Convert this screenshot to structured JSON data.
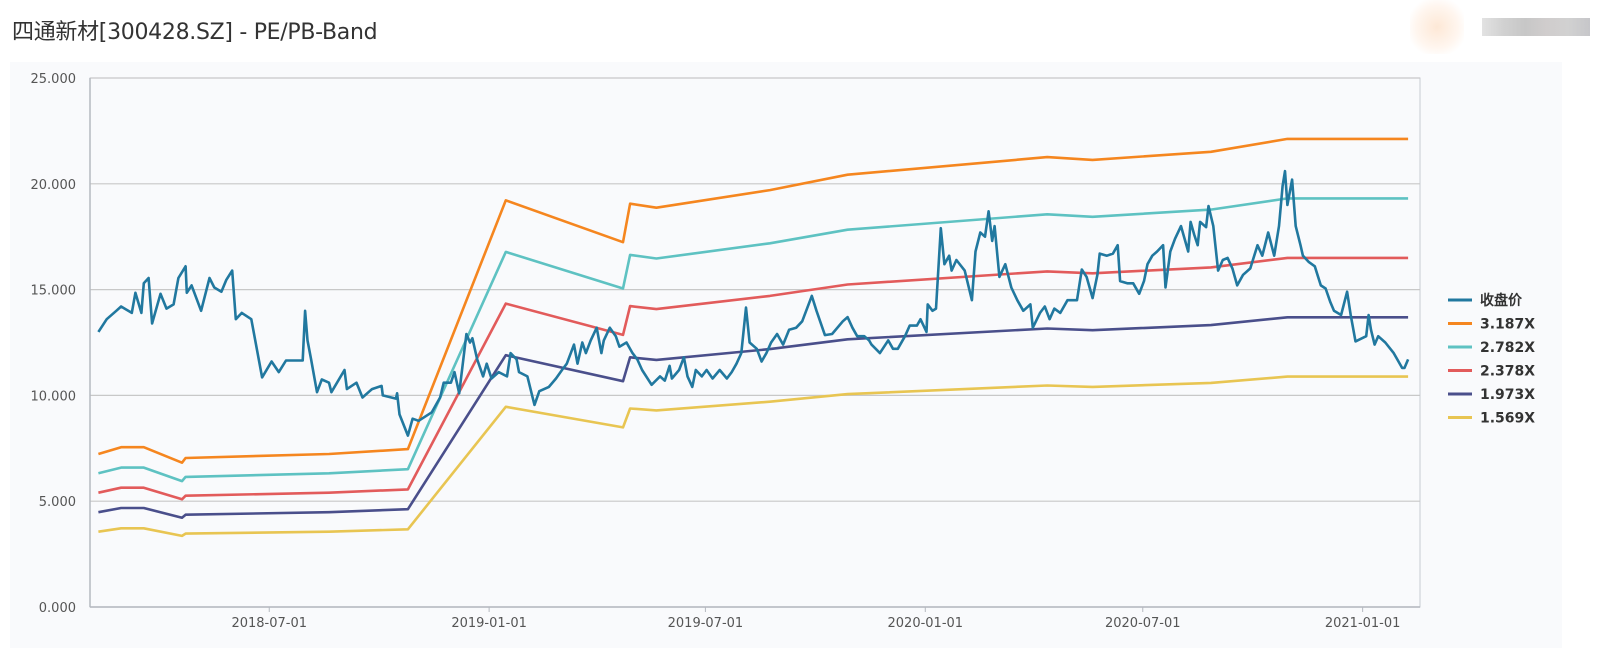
{
  "header": {
    "title": "四通新材[300428.SZ] - PE/PB-Band"
  },
  "chart_data": {
    "type": "line",
    "title": "四通新材[300428.SZ] - PE/PB-Band",
    "xlabel": "",
    "ylabel": "",
    "ylim": [
      0,
      25
    ],
    "xlim": [
      "2018-02-01",
      "2021-02-18"
    ],
    "yticks": [
      "0.000",
      "5.000",
      "10.000",
      "15.000",
      "20.000",
      "25.000"
    ],
    "xticks": [
      "2018-07-01",
      "2019-01-01",
      "2019-07-01",
      "2020-01-01",
      "2020-07-01",
      "2021-01-01"
    ],
    "grid": "horizontal",
    "legend_position": "right",
    "band_dates": [
      "2018-02-08",
      "2018-02-27",
      "2018-03-18",
      "2018-04-19",
      "2018-04-22",
      "2018-08-20",
      "2018-10-25",
      "2019-01-15",
      "2019-04-23",
      "2019-04-29",
      "2019-05-21",
      "2019-08-24",
      "2019-10-28",
      "2020-04-12",
      "2020-05-20",
      "2020-08-27",
      "2020-10-30",
      "2021-02-08"
    ],
    "series": [
      {
        "name": "收盘价",
        "color": "#21789f",
        "points": [
          [
            "2018-02-08",
            13.0
          ],
          [
            "2018-02-15",
            13.6
          ],
          [
            "2018-02-23",
            14.0
          ],
          [
            "2018-02-27",
            14.2
          ],
          [
            "2018-03-08",
            13.9
          ],
          [
            "2018-03-11",
            14.85
          ],
          [
            "2018-03-16",
            13.9
          ],
          [
            "2018-03-18",
            15.3
          ],
          [
            "2018-03-22",
            15.55
          ],
          [
            "2018-03-25",
            13.4
          ],
          [
            "2018-04-01",
            14.8
          ],
          [
            "2018-04-06",
            14.1
          ],
          [
            "2018-04-12",
            14.3
          ],
          [
            "2018-04-16",
            15.55
          ],
          [
            "2018-04-22",
            16.1
          ],
          [
            "2018-04-23",
            14.85
          ],
          [
            "2018-04-27",
            15.2
          ],
          [
            "2018-05-05",
            14.0
          ],
          [
            "2018-05-12",
            15.55
          ],
          [
            "2018-05-16",
            15.1
          ],
          [
            "2018-05-22",
            14.9
          ],
          [
            "2018-05-26",
            15.45
          ],
          [
            "2018-05-31",
            15.9
          ],
          [
            "2018-06-03",
            13.6
          ],
          [
            "2018-06-08",
            13.9
          ],
          [
            "2018-06-16",
            13.6
          ],
          [
            "2018-06-25",
            10.85
          ],
          [
            "2018-07-03",
            11.6
          ],
          [
            "2018-07-09",
            11.1
          ],
          [
            "2018-07-15",
            11.65
          ],
          [
            "2018-07-29",
            11.65
          ],
          [
            "2018-07-31",
            14.0
          ],
          [
            "2018-08-02",
            12.6
          ],
          [
            "2018-08-05",
            11.7
          ],
          [
            "2018-08-10",
            10.15
          ],
          [
            "2018-08-14",
            10.75
          ],
          [
            "2018-08-20",
            10.6
          ],
          [
            "2018-08-22",
            10.15
          ],
          [
            "2018-09-02",
            11.2
          ],
          [
            "2018-09-04",
            10.3
          ],
          [
            "2018-09-12",
            10.6
          ],
          [
            "2018-09-17",
            9.9
          ],
          [
            "2018-09-23",
            10.2
          ],
          [
            "2018-09-25",
            10.3
          ],
          [
            "2018-10-03",
            10.45
          ],
          [
            "2018-10-04",
            10.0
          ],
          [
            "2018-10-15",
            9.85
          ],
          [
            "2018-10-16",
            10.1
          ],
          [
            "2018-10-18",
            9.1
          ],
          [
            "2018-10-25",
            8.1
          ],
          [
            "2018-10-29",
            8.9
          ],
          [
            "2018-11-03",
            8.8
          ],
          [
            "2018-11-14",
            9.2
          ],
          [
            "2018-11-18",
            9.6
          ],
          [
            "2018-11-21",
            9.9
          ],
          [
            "2018-11-24",
            10.6
          ],
          [
            "2018-11-30",
            10.6
          ],
          [
            "2018-12-03",
            11.1
          ],
          [
            "2018-12-07",
            10.1
          ],
          [
            "2018-12-13",
            12.9
          ],
          [
            "2018-12-16",
            12.5
          ],
          [
            "2018-12-18",
            12.7
          ],
          [
            "2018-12-22",
            11.7
          ],
          [
            "2018-12-27",
            10.9
          ],
          [
            "2018-12-30",
            11.5
          ],
          [
            "2019-01-03",
            10.8
          ],
          [
            "2019-01-09",
            11.1
          ],
          [
            "2019-01-16",
            10.9
          ],
          [
            "2019-01-19",
            12.0
          ],
          [
            "2019-01-24",
            11.7
          ],
          [
            "2019-01-26",
            11.1
          ],
          [
            "2019-02-02",
            10.9
          ],
          [
            "2019-02-06",
            10.0
          ],
          [
            "2019-02-08",
            9.55
          ],
          [
            "2019-02-12",
            10.2
          ],
          [
            "2019-02-20",
            10.4
          ],
          [
            "2019-02-26",
            10.8
          ],
          [
            "2019-03-03",
            11.2
          ],
          [
            "2019-03-07",
            11.5
          ],
          [
            "2019-03-13",
            12.4
          ],
          [
            "2019-03-16",
            11.5
          ],
          [
            "2019-03-20",
            12.5
          ],
          [
            "2019-03-23",
            12.0
          ],
          [
            "2019-03-27",
            12.6
          ],
          [
            "2019-04-01",
            13.2
          ],
          [
            "2019-04-05",
            12.0
          ],
          [
            "2019-04-07",
            12.6
          ],
          [
            "2019-04-12",
            13.2
          ],
          [
            "2019-04-17",
            12.8
          ],
          [
            "2019-04-20",
            12.3
          ],
          [
            "2019-04-26",
            12.5
          ],
          [
            "2019-05-01",
            12.0
          ],
          [
            "2019-05-05",
            11.7
          ],
          [
            "2019-05-09",
            11.2
          ],
          [
            "2019-05-17",
            10.5
          ],
          [
            "2019-05-24",
            10.9
          ],
          [
            "2019-05-28",
            10.7
          ],
          [
            "2019-06-01",
            11.4
          ],
          [
            "2019-06-03",
            10.8
          ],
          [
            "2019-06-09",
            11.2
          ],
          [
            "2019-06-13",
            11.8
          ],
          [
            "2019-06-16",
            10.9
          ],
          [
            "2019-06-20",
            10.4
          ],
          [
            "2019-06-23",
            11.2
          ],
          [
            "2019-06-28",
            10.9
          ],
          [
            "2019-07-02",
            11.2
          ],
          [
            "2019-07-07",
            10.8
          ],
          [
            "2019-07-13",
            11.2
          ],
          [
            "2019-07-19",
            10.8
          ],
          [
            "2019-07-23",
            11.1
          ],
          [
            "2019-07-27",
            11.5
          ],
          [
            "2019-07-31",
            12.0
          ],
          [
            "2019-08-04",
            14.15
          ],
          [
            "2019-08-07",
            12.5
          ],
          [
            "2019-08-13",
            12.2
          ],
          [
            "2019-08-17",
            11.6
          ],
          [
            "2019-08-21",
            12.0
          ],
          [
            "2019-08-25",
            12.5
          ],
          [
            "2019-08-30",
            12.9
          ],
          [
            "2019-09-04",
            12.4
          ],
          [
            "2019-09-09",
            13.1
          ],
          [
            "2019-09-15",
            13.2
          ],
          [
            "2019-09-20",
            13.5
          ],
          [
            "2019-09-28",
            14.7
          ],
          [
            "2019-10-02",
            14.0
          ],
          [
            "2019-10-09",
            12.85
          ],
          [
            "2019-10-15",
            12.9
          ],
          [
            "2019-10-24",
            13.5
          ],
          [
            "2019-10-28",
            13.7
          ],
          [
            "2019-11-01",
            13.2
          ],
          [
            "2019-11-05",
            12.8
          ],
          [
            "2019-11-11",
            12.8
          ],
          [
            "2019-11-15",
            12.6
          ],
          [
            "2019-11-17",
            12.4
          ],
          [
            "2019-11-24",
            12.0
          ],
          [
            "2019-12-01",
            12.6
          ],
          [
            "2019-12-05",
            12.2
          ],
          [
            "2019-12-09",
            12.2
          ],
          [
            "2019-12-15",
            12.8
          ],
          [
            "2019-12-19",
            13.3
          ],
          [
            "2019-12-25",
            13.3
          ],
          [
            "2019-12-28",
            13.6
          ],
          [
            "2020-01-02",
            13.0
          ],
          [
            "2020-01-03",
            14.3
          ],
          [
            "2020-01-07",
            14.0
          ],
          [
            "2020-01-10",
            14.1
          ],
          [
            "2020-01-14",
            17.9
          ],
          [
            "2020-01-17",
            16.2
          ],
          [
            "2020-01-21",
            16.6
          ],
          [
            "2020-01-23",
            15.9
          ],
          [
            "2020-01-27",
            16.4
          ],
          [
            "2020-02-03",
            15.9
          ],
          [
            "2020-02-09",
            14.5
          ],
          [
            "2020-02-12",
            16.8
          ],
          [
            "2020-02-16",
            17.7
          ],
          [
            "2020-02-20",
            17.5
          ],
          [
            "2020-02-23",
            18.7
          ],
          [
            "2020-02-26",
            17.3
          ],
          [
            "2020-02-28",
            18.0
          ],
          [
            "2020-03-03",
            15.6
          ],
          [
            "2020-03-08",
            16.2
          ],
          [
            "2020-03-13",
            15.1
          ],
          [
            "2020-03-18",
            14.5
          ],
          [
            "2020-03-23",
            14.0
          ],
          [
            "2020-03-29",
            14.3
          ],
          [
            "2020-03-31",
            13.2
          ],
          [
            "2020-04-06",
            13.9
          ],
          [
            "2020-04-10",
            14.2
          ],
          [
            "2020-04-14",
            13.6
          ],
          [
            "2020-04-18",
            14.1
          ],
          [
            "2020-04-23",
            13.9
          ],
          [
            "2020-04-29",
            14.5
          ],
          [
            "2020-05-07",
            14.5
          ],
          [
            "2020-05-11",
            15.95
          ],
          [
            "2020-05-15",
            15.6
          ],
          [
            "2020-05-20",
            14.6
          ],
          [
            "2020-05-24",
            15.7
          ],
          [
            "2020-05-26",
            16.7
          ],
          [
            "2020-06-01",
            16.6
          ],
          [
            "2020-06-06",
            16.7
          ],
          [
            "2020-06-10",
            17.1
          ],
          [
            "2020-06-12",
            15.4
          ],
          [
            "2020-06-18",
            15.3
          ],
          [
            "2020-06-23",
            15.3
          ],
          [
            "2020-06-28",
            14.8
          ],
          [
            "2020-07-02",
            15.4
          ],
          [
            "2020-07-05",
            16.2
          ],
          [
            "2020-07-09",
            16.6
          ],
          [
            "2020-07-13",
            16.8
          ],
          [
            "2020-07-18",
            17.1
          ],
          [
            "2020-07-20",
            15.1
          ],
          [
            "2020-07-24",
            16.8
          ],
          [
            "2020-07-28",
            17.4
          ],
          [
            "2020-08-02",
            18.0
          ],
          [
            "2020-08-04",
            17.6
          ],
          [
            "2020-08-08",
            16.8
          ],
          [
            "2020-08-10",
            18.2
          ],
          [
            "2020-08-13",
            17.6
          ],
          [
            "2020-08-16",
            17.1
          ],
          [
            "2020-08-18",
            18.2
          ],
          [
            "2020-08-23",
            17.95
          ],
          [
            "2020-08-25",
            18.95
          ],
          [
            "2020-08-29",
            18.0
          ],
          [
            "2020-09-02",
            15.9
          ],
          [
            "2020-09-06",
            16.4
          ],
          [
            "2020-09-10",
            16.5
          ],
          [
            "2020-09-14",
            16.0
          ],
          [
            "2020-09-18",
            15.2
          ],
          [
            "2020-09-23",
            15.7
          ],
          [
            "2020-09-29",
            16.0
          ],
          [
            "2020-10-05",
            17.1
          ],
          [
            "2020-10-09",
            16.6
          ],
          [
            "2020-10-14",
            17.7
          ],
          [
            "2020-10-19",
            16.6
          ],
          [
            "2020-10-23",
            18.0
          ],
          [
            "2020-10-26",
            19.9
          ],
          [
            "2020-10-28",
            20.6
          ],
          [
            "2020-10-30",
            19.0
          ],
          [
            "2020-11-03",
            20.2
          ],
          [
            "2020-11-06",
            18.0
          ],
          [
            "2020-11-10",
            17.1
          ],
          [
            "2020-11-12",
            16.6
          ],
          [
            "2020-11-17",
            16.3
          ],
          [
            "2020-11-22",
            16.1
          ],
          [
            "2020-11-27",
            15.2
          ],
          [
            "2020-12-01",
            15.05
          ],
          [
            "2020-12-05",
            14.4
          ],
          [
            "2020-12-08",
            14.0
          ],
          [
            "2020-12-14",
            13.8
          ],
          [
            "2020-12-19",
            14.9
          ],
          [
            "2020-12-22",
            13.8
          ],
          [
            "2020-12-26",
            12.55
          ],
          [
            "2021-01-04",
            12.8
          ],
          [
            "2021-01-06",
            13.8
          ],
          [
            "2021-01-08",
            13.1
          ],
          [
            "2021-01-11",
            12.4
          ],
          [
            "2021-01-14",
            12.8
          ],
          [
            "2021-01-20",
            12.5
          ],
          [
            "2021-01-27",
            12.0
          ],
          [
            "2021-02-03",
            11.3
          ],
          [
            "2021-02-05",
            11.3
          ],
          [
            "2021-02-08",
            11.7
          ]
        ]
      },
      {
        "name": "3.187X",
        "color": "#f5861f",
        "values": [
          7.23,
          7.55,
          7.55,
          6.82,
          7.04,
          7.23,
          7.46,
          19.22,
          17.24,
          19.06,
          18.87,
          19.7,
          20.43,
          21.26,
          21.13,
          21.51,
          22.12,
          22.12
        ]
      },
      {
        "name": "2.782X",
        "color": "#5ec2c2",
        "values": [
          6.32,
          6.59,
          6.59,
          5.95,
          6.15,
          6.32,
          6.51,
          16.78,
          15.05,
          16.64,
          16.47,
          17.19,
          17.83,
          18.56,
          18.44,
          18.78,
          19.31,
          19.31
        ]
      },
      {
        "name": "2.378X",
        "color": "#e25b5b",
        "values": [
          5.4,
          5.64,
          5.64,
          5.09,
          5.26,
          5.4,
          5.56,
          14.34,
          12.86,
          14.22,
          14.08,
          14.7,
          15.24,
          15.86,
          15.77,
          16.05,
          16.5,
          16.5
        ]
      },
      {
        "name": "1.973X",
        "color": "#4a4f8b",
        "values": [
          4.48,
          4.68,
          4.68,
          4.22,
          4.36,
          4.48,
          4.62,
          11.9,
          10.67,
          11.8,
          11.68,
          12.19,
          12.65,
          13.16,
          13.08,
          13.32,
          13.69,
          13.69
        ]
      },
      {
        "name": "1.569X",
        "color": "#e8c552",
        "values": [
          3.56,
          3.72,
          3.72,
          3.36,
          3.47,
          3.56,
          3.67,
          9.46,
          8.49,
          9.38,
          9.29,
          9.7,
          10.06,
          10.47,
          10.4,
          10.59,
          10.89,
          10.89
        ]
      }
    ]
  }
}
